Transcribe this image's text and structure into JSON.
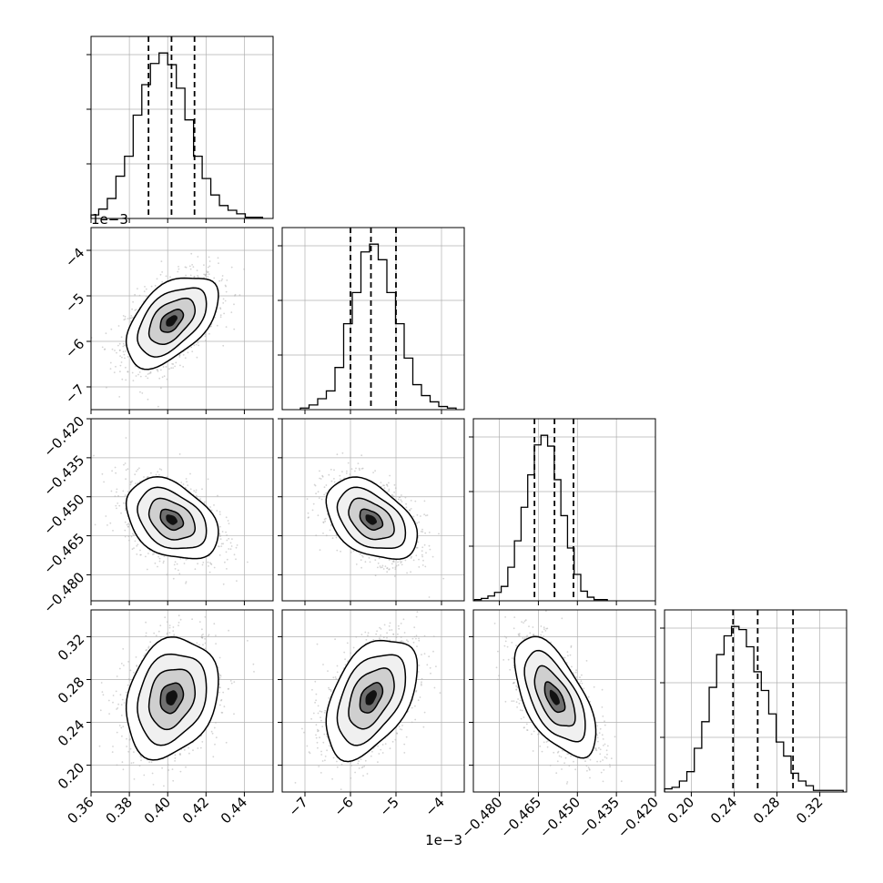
{
  "chart_data": {
    "type": "corner",
    "description_note": "",
    "parameters": [
      {
        "id": "p0",
        "range": [
          0.36,
          0.455
        ],
        "ticks": [
          0.36,
          0.38,
          0.4,
          0.42,
          0.44
        ],
        "tick_labels": [
          "0.36",
          "0.38",
          "0.40",
          "0.42",
          "0.44"
        ],
        "offset_label": "",
        "quantiles": [
          0.39,
          0.402,
          0.414
        ],
        "hist": {
          "edges_start": 0.3595,
          "bin_width": 0.0045,
          "counts": [
            3,
            8,
            17,
            36,
            53,
            88,
            114,
            132,
            141,
            131,
            111,
            84,
            53,
            34,
            20,
            11,
            7,
            4,
            1,
            1
          ]
        }
      },
      {
        "id": "p1",
        "range": [
          -7.5,
          -3.5
        ],
        "ticks": [
          -7,
          -6,
          -5,
          -4
        ],
        "tick_labels": [
          "−7",
          "−6",
          "−5",
          "−4"
        ],
        "offset_label": "1e−3",
        "quantiles": [
          -6.0,
          -5.55,
          -5.0
        ],
        "hist": {
          "edges_start": -7.1,
          "bin_width": 0.19,
          "counts": [
            1,
            3,
            7,
            12,
            27,
            55,
            75,
            101,
            106,
            96,
            75,
            55,
            33,
            16,
            9,
            5,
            2,
            1
          ]
        }
      },
      {
        "id": "p2",
        "range": [
          -0.49,
          -0.42
        ],
        "ticks": [
          -0.48,
          -0.465,
          -0.45,
          -0.435,
          -0.42
        ],
        "tick_labels": [
          "−0.480",
          "−0.465",
          "−0.450",
          "−0.435",
          "−0.420"
        ],
        "offset_label": "",
        "quantiles": [
          -0.4665,
          -0.4588,
          -0.4515
        ],
        "hist": {
          "edges_start": -0.4895,
          "bin_width": 0.00255,
          "counts": [
            1,
            2,
            4,
            7,
            12,
            28,
            50,
            78,
            105,
            130,
            138,
            129,
            101,
            71,
            44,
            22,
            8,
            3,
            1,
            1
          ]
        }
      },
      {
        "id": "p3",
        "range": [
          0.175,
          0.345
        ],
        "ticks": [
          0.2,
          0.24,
          0.28,
          0.32
        ],
        "tick_labels": [
          "0.20",
          "0.24",
          "0.28",
          "0.32"
        ],
        "offset_label": "",
        "quantiles": [
          0.239,
          0.262,
          0.295
        ],
        "hist": {
          "edges_start": 0.175,
          "bin_width": 0.00695,
          "counts": [
            2,
            3,
            7,
            13,
            28,
            45,
            67,
            88,
            100,
            106,
            104,
            93,
            77,
            65,
            50,
            32,
            23,
            12,
            7,
            4,
            1,
            1,
            1,
            1
          ]
        }
      }
    ],
    "row_offset_labels": [
      "1e−3"
    ],
    "pairs": [
      {
        "row": 1,
        "col": 0,
        "center": [
          0.402,
          -5.55
        ],
        "sigma": [
          0.012,
          0.5
        ],
        "rho": 0.5
      },
      {
        "row": 2,
        "col": 0,
        "center": [
          0.402,
          -0.4588
        ],
        "sigma": [
          0.012,
          0.0078
        ],
        "rho": -0.35
      },
      {
        "row": 2,
        "col": 1,
        "center": [
          -5.55,
          -0.4588
        ],
        "sigma": [
          0.5,
          0.0078
        ],
        "rho": -0.42
      },
      {
        "row": 3,
        "col": 0,
        "center": [
          0.402,
          0.263
        ],
        "sigma": [
          0.012,
          0.028
        ],
        "rho": 0.22
      },
      {
        "row": 3,
        "col": 1,
        "center": [
          -5.55,
          0.263
        ],
        "sigma": [
          0.5,
          0.028
        ],
        "rho": 0.45
      },
      {
        "row": 3,
        "col": 2,
        "center": [
          -0.4588,
          0.263
        ],
        "sigma": [
          0.0078,
          0.028
        ],
        "rho": -0.6
      }
    ],
    "contour_levels_sigma": [
      0.5,
      1.0,
      1.5,
      2.0
    ],
    "grid": true,
    "colors": {
      "scatter": "#b0b0b0",
      "contour": "#000000",
      "density": "#000000",
      "grid": "#b0b0b0"
    }
  }
}
